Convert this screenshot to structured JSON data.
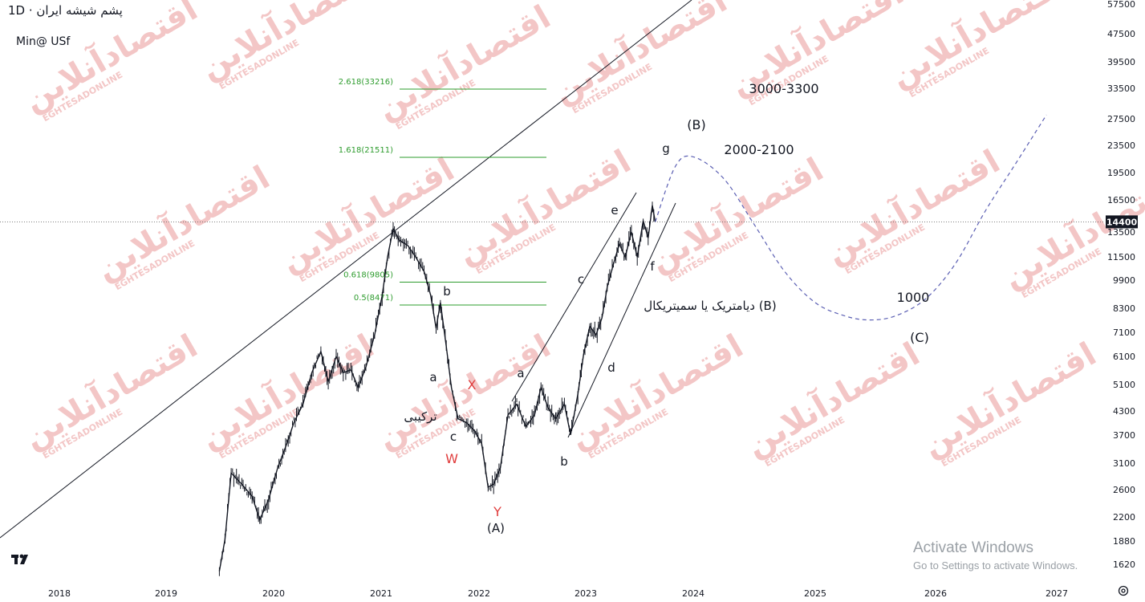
{
  "header": {
    "title": "1D · پشم شیشه ایران",
    "subtitle": "Min@ USf"
  },
  "watermark": {
    "brand": "اقتصادآنلاین",
    "latin": "EGHTESADONLINE"
  },
  "os_overlay": {
    "line1": "Activate Windows",
    "line2": "Go to Settings to activate Windows."
  },
  "colors": {
    "price": "#131722",
    "fib": "#2e9c2e",
    "forecast": "#5b5fb3",
    "wave_red": "#e03c3c",
    "watermark": "#f3c6c6"
  },
  "icons": {
    "logo": "tradingview-logo-icon",
    "settings": "gear-icon"
  },
  "chart_data": {
    "type": "line",
    "scale": "log",
    "x_ticks": [
      "2018",
      "2019",
      "2020",
      "2021",
      "2022",
      "2023",
      "2024",
      "2025",
      "2026",
      "2027"
    ],
    "y_ticks": [
      57500,
      47500,
      39500,
      33500,
      27500,
      23500,
      19500,
      16500,
      13500,
      11500,
      9900,
      8300,
      7100,
      6100,
      5100,
      4300,
      3700,
      3100,
      2600,
      2200,
      1880,
      1620
    ],
    "ylim": [
      1500,
      60000
    ],
    "current_price": {
      "value": 14400,
      "label": "14400"
    },
    "series": [
      {
        "values_date_price": [
          [
            "2019-07-01",
            1550
          ],
          [
            "2019-07-20",
            1900
          ],
          [
            "2019-08-10",
            2900
          ],
          [
            "2019-09-15",
            2700
          ],
          [
            "2019-10-20",
            2500
          ],
          [
            "2019-11-15",
            2150
          ],
          [
            "2019-12-15",
            2450
          ],
          [
            "2020-01-15",
            3000
          ],
          [
            "2020-02-15",
            3500
          ],
          [
            "2020-03-10",
            4000
          ],
          [
            "2020-04-10",
            4500
          ],
          [
            "2020-05-10",
            5500
          ],
          [
            "2020-06-10",
            6300
          ],
          [
            "2020-07-05",
            5200
          ],
          [
            "2020-08-01",
            6100
          ],
          [
            "2020-08-25",
            5500
          ],
          [
            "2020-09-20",
            5600
          ],
          [
            "2020-10-15",
            5000
          ],
          [
            "2020-11-10",
            5700
          ],
          [
            "2020-12-10",
            7000
          ],
          [
            "2021-01-05",
            9000
          ],
          [
            "2021-01-25",
            11500
          ],
          [
            "2021-02-15",
            13800
          ],
          [
            "2021-03-10",
            12800
          ],
          [
            "2021-04-10",
            12400
          ],
          [
            "2021-05-10",
            11500
          ],
          [
            "2021-06-10",
            10500
          ],
          [
            "2021-07-05",
            9000
          ],
          [
            "2021-07-25",
            7300
          ],
          [
            "2021-08-10",
            8600
          ],
          [
            "2021-09-01",
            6500
          ],
          [
            "2021-09-20",
            5000
          ],
          [
            "2021-10-15",
            4100
          ],
          [
            "2021-11-15",
            4000
          ],
          [
            "2021-12-15",
            3800
          ],
          [
            "2022-01-10",
            3500
          ],
          [
            "2022-02-01",
            2650
          ],
          [
            "2022-02-20",
            2700
          ],
          [
            "2022-03-15",
            3000
          ],
          [
            "2022-04-10",
            4200
          ],
          [
            "2022-05-10",
            4500
          ],
          [
            "2022-06-10",
            3900
          ],
          [
            "2022-07-10",
            4200
          ],
          [
            "2022-08-01",
            5000
          ],
          [
            "2022-08-25",
            4400
          ],
          [
            "2022-09-20",
            4100
          ],
          [
            "2022-10-20",
            4500
          ],
          [
            "2022-11-10",
            3700
          ],
          [
            "2022-12-05",
            4800
          ],
          [
            "2022-12-25",
            6200
          ],
          [
            "2023-01-15",
            7400
          ],
          [
            "2023-02-05",
            7000
          ],
          [
            "2023-02-25",
            7800
          ],
          [
            "2023-03-15",
            9500
          ],
          [
            "2023-04-05",
            11000
          ],
          [
            "2023-04-25",
            12500
          ],
          [
            "2023-05-15",
            11500
          ],
          [
            "2023-06-05",
            13500
          ],
          [
            "2023-06-25",
            11500
          ],
          [
            "2023-07-15",
            14500
          ],
          [
            "2023-08-01",
            13000
          ],
          [
            "2023-08-15",
            16000
          ],
          [
            "2023-08-25",
            14400
          ]
        ]
      },
      {
        "name": "forecast",
        "style": "dashed",
        "values_date_price": [
          [
            "2023-08-25",
            14400
          ],
          [
            "2023-11-01",
            20500
          ],
          [
            "2024-01-01",
            21800
          ],
          [
            "2024-04-01",
            19000
          ],
          [
            "2024-07-01",
            14200
          ],
          [
            "2024-10-01",
            10500
          ],
          [
            "2025-01-01",
            8600
          ],
          [
            "2025-04-01",
            7900
          ],
          [
            "2025-06-15",
            7700
          ],
          [
            "2025-09-01",
            7900
          ],
          [
            "2025-12-01",
            8800
          ],
          [
            "2026-03-01",
            11000
          ],
          [
            "2026-06-01",
            15500
          ],
          [
            "2026-09-01",
            21000
          ],
          [
            "2026-12-01",
            28500
          ]
        ]
      }
    ],
    "fib_levels": [
      {
        "label": "2.618(33216)",
        "value": 33216
      },
      {
        "label": "1.618(21511)",
        "value": 21511
      },
      {
        "label": "0.618(9805)",
        "value": 9805
      },
      {
        "label": "0.5(8471)",
        "value": 8471
      }
    ],
    "annotations": [
      {
        "text": "(A)",
        "color": "#131722"
      },
      {
        "text": "Y",
        "color": "#e03c3c"
      },
      {
        "text": "W",
        "color": "#e03c3c"
      },
      {
        "text": "X",
        "color": "#e03c3c"
      },
      {
        "text": "a",
        "color": "#131722"
      },
      {
        "text": "b",
        "color": "#131722"
      },
      {
        "text": "c",
        "color": "#131722"
      },
      {
        "text": "ترکیبی",
        "color": "#131722"
      },
      {
        "text": "a",
        "color": "#131722"
      },
      {
        "text": "b",
        "color": "#131722"
      },
      {
        "text": "c",
        "color": "#131722"
      },
      {
        "text": "d",
        "color": "#131722"
      },
      {
        "text": "e",
        "color": "#131722"
      },
      {
        "text": "f",
        "color": "#131722"
      },
      {
        "text": "g",
        "color": "#131722"
      },
      {
        "text": "(B)",
        "color": "#131722"
      },
      {
        "text": "ديامتريک يا سميتريکال (B)",
        "color": "#131722"
      },
      {
        "text": "3000-3300",
        "color": "#131722"
      },
      {
        "text": "2000-2100",
        "color": "#131722"
      },
      {
        "text": "1000",
        "color": "#131722"
      },
      {
        "text": "(C)",
        "color": "#131722"
      }
    ]
  }
}
